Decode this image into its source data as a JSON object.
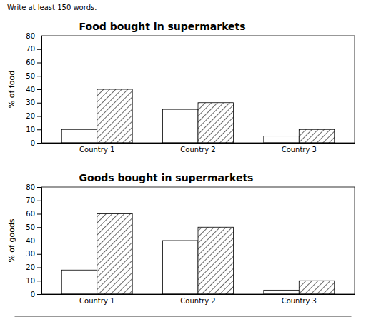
{
  "chart_data": [
    {
      "type": "bar",
      "title": "Food bought in supermarkets",
      "annotations": [
        "Write at least 150 words."
      ],
      "categories": [
        "Country 1",
        "Country 2",
        "Country 3"
      ],
      "series": [
        {
          "color": "#ffffff",
          "values": [
            10,
            25,
            5
          ]
        },
        {
          "color": "#ffffff",
          "values": [
            40,
            30,
            10
          ]
        }
      ],
      "y_label": "% of food",
      "ylim": [
        0,
        80
      ],
      "yticks": [
        0,
        10,
        20,
        30,
        40,
        50,
        60,
        70,
        80
      ],
      "grid": false
    },
    {
      "type": "bar",
      "title": "Goods bought in supermarkets",
      "categories": [
        "Country 1",
        "Country 2",
        "Country 3"
      ],
      "series": [
        {
          "color": "#ffffff",
          "values": [
            18,
            40,
            3
          ]
        },
        {
          "color": "#ffffff",
          "values": [
            60,
            50,
            10
          ]
        }
      ],
      "y_label": "% of goods",
      "ylim": [
        0,
        80
      ],
      "yticks": [
        0,
        10,
        20,
        30,
        40,
        50,
        60,
        70,
        80
      ],
      "grid": false
    }
  ]
}
